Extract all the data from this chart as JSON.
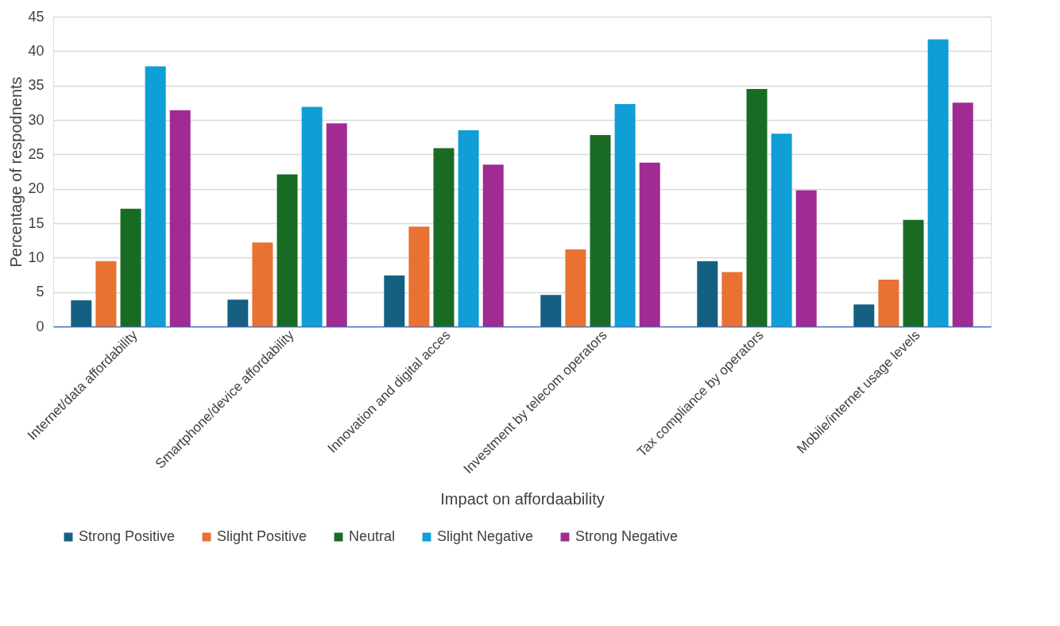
{
  "chart_data": {
    "type": "bar",
    "xlabel": "Impact on affordaability",
    "ylabel": "Percentage of respodnents",
    "categories": [
      "Internet/data affordability",
      "Smartphone/device affordability",
      "Innovation and digital acces",
      "Investment by telecom operators",
      "Tax compliance by operators",
      "Mobile/internet usage levels"
    ],
    "series": [
      {
        "name": "Strong Positive",
        "color": "#156082",
        "values": [
          3.8,
          3.9,
          7.4,
          4.6,
          9.5,
          3.2
        ]
      },
      {
        "name": "Slight Positive",
        "color": "#e97132",
        "values": [
          9.5,
          12.2,
          14.5,
          11.2,
          7.9,
          6.8
        ]
      },
      {
        "name": "Neutral",
        "color": "#196b24",
        "values": [
          17.1,
          22.1,
          25.9,
          27.8,
          34.5,
          15.5
        ]
      },
      {
        "name": "Slight Negative",
        "color": "#0f9ed5",
        "values": [
          37.8,
          31.9,
          28.5,
          32.3,
          28.0,
          41.7
        ]
      },
      {
        "name": "Strong Negative",
        "color": "#a02b93",
        "values": [
          31.4,
          29.5,
          23.5,
          23.8,
          19.8,
          32.5
        ]
      }
    ],
    "ylim": [
      0,
      45
    ],
    "yticks": [
      0,
      5,
      10,
      15,
      20,
      25,
      30,
      35,
      40,
      45
    ],
    "grid": "y",
    "legend": "bottom"
  }
}
